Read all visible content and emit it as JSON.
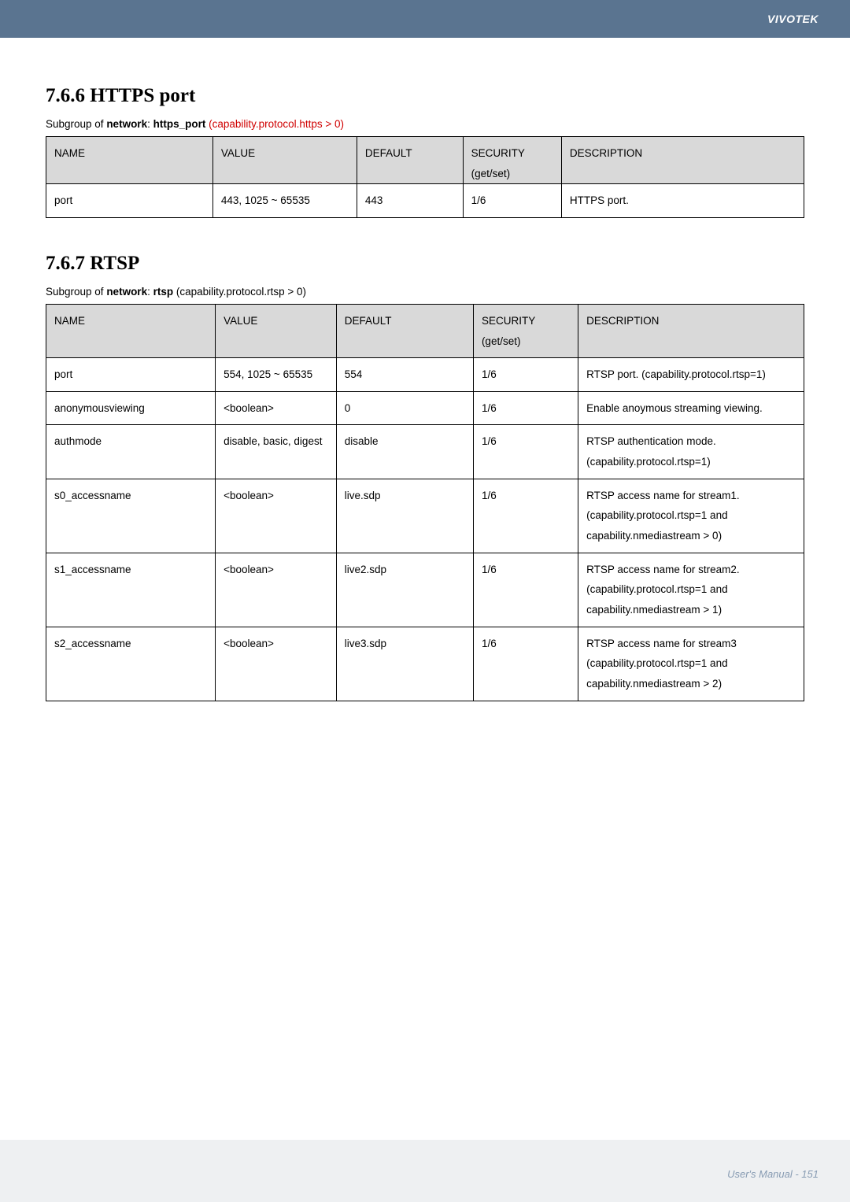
{
  "brand": "VIVOTEK",
  "section_766": {
    "heading": "7.6.6 HTTPS port",
    "subgroup_prefix": "Subgroup of ",
    "subgroup_bold1": "network",
    "subgroup_sep": ": ",
    "subgroup_bold2": "https_port",
    "condition": " (capability.protocol.https > 0)",
    "headers": {
      "name": "NAME",
      "value": "VALUE",
      "default": "DEFAULT",
      "security": "SECURITY",
      "security_sub": "(get/set)",
      "description": "DESCRIPTION"
    },
    "rows": [
      {
        "name": "port",
        "value": "443, 1025 ~ 65535",
        "default": "443",
        "security": "1/6",
        "description": "HTTPS port."
      }
    ]
  },
  "section_767": {
    "heading": "7.6.7 RTSP",
    "subgroup_prefix": "Subgroup of ",
    "subgroup_bold1": "network",
    "subgroup_sep": ": ",
    "subgroup_bold2": "rtsp",
    "condition": " (capability.protocol.rtsp > 0)",
    "headers": {
      "name": "NAME",
      "value": "VALUE",
      "default": "DEFAULT",
      "security": "SECURITY",
      "security_sub": "(get/set)",
      "description": "DESCRIPTION"
    },
    "rows": [
      {
        "name": "port",
        "value": "554, 1025 ~ 65535",
        "default": "554",
        "security": "1/6",
        "description": "RTSP port. (capability.protocol.rtsp=1)"
      },
      {
        "name": "anonymousviewing",
        "value": "<boolean>",
        "default": "0",
        "security": "1/6",
        "description": "Enable anoymous streaming viewing."
      },
      {
        "name": "authmode",
        "value": "disable, basic, digest",
        "default": "disable",
        "security": "1/6",
        "description": "RTSP authentication mode. (capability.protocol.rtsp=1)"
      },
      {
        "name": "s0_accessname",
        "value": "<boolean>",
        "default": "live.sdp",
        "security": "1/6",
        "description": "RTSP access name for stream1. (capability.protocol.rtsp=1 and capability.nmediastream > 0)"
      },
      {
        "name": "s1_accessname",
        "value": "<boolean>",
        "default": "live2.sdp",
        "security": "1/6",
        "description": "RTSP access name for stream2. (capability.protocol.rtsp=1 and capability.nmediastream > 1)"
      },
      {
        "name": "s2_accessname",
        "value": "<boolean>",
        "default": "live3.sdp",
        "security": "1/6",
        "description": "RTSP access name for stream3 (capability.protocol.rtsp=1 and capability.nmediastream > 2)"
      }
    ]
  },
  "footer": "User's Manual - 151"
}
